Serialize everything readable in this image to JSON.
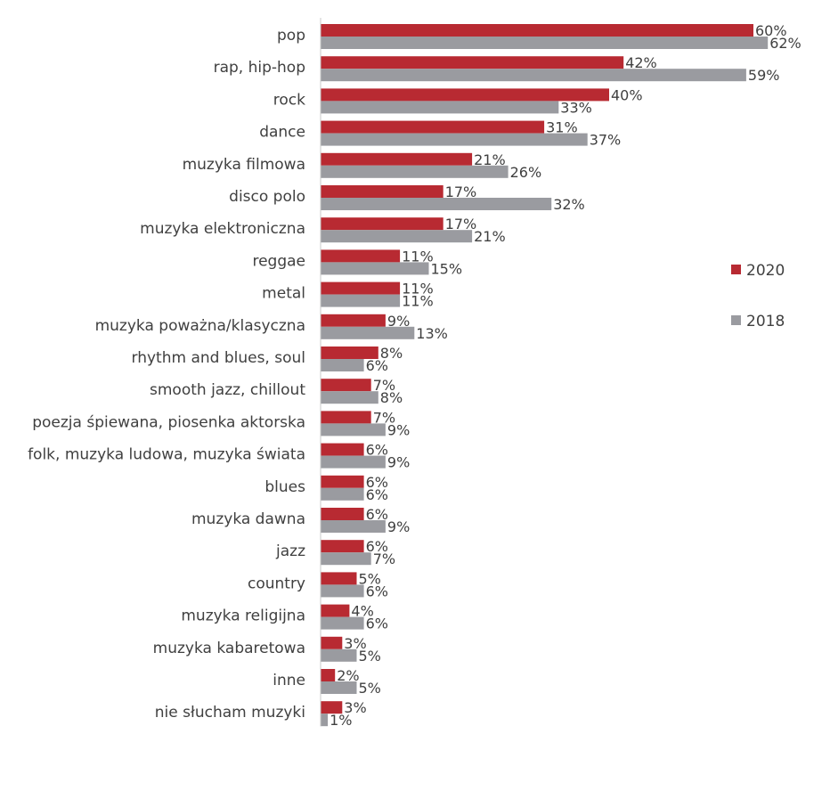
{
  "chart_data": {
    "type": "bar",
    "orientation": "horizontal",
    "categories": [
      "pop",
      "rap, hip-hop",
      "rock",
      "dance",
      "muzyka filmowa",
      "disco polo",
      "muzyka elektroniczna",
      "reggae",
      "metal",
      "muzyka poważna/klasyczna",
      "rhythm and blues, soul",
      "smooth jazz, chillout",
      "poezja śpiewana, piosenka aktorska",
      "folk, muzyka ludowa, muzyka świata",
      "blues",
      "muzyka dawna",
      "jazz",
      "country",
      "muzyka religijna",
      "muzyka kabaretowa",
      "inne",
      "nie słucham muzyki"
    ],
    "series": [
      {
        "name": "2020",
        "color": "#b82a32",
        "values": [
          60,
          42,
          40,
          31,
          21,
          17,
          17,
          11,
          11,
          9,
          8,
          7,
          7,
          6,
          6,
          6,
          6,
          5,
          4,
          3,
          2,
          3
        ]
      },
      {
        "name": "2018",
        "color": "#9a9ba0",
        "values": [
          62,
          59,
          33,
          37,
          26,
          32,
          21,
          15,
          11,
          13,
          6,
          8,
          9,
          9,
          6,
          9,
          7,
          6,
          6,
          5,
          5,
          1
        ]
      }
    ],
    "value_suffix": "%",
    "xlim": [
      0,
      70
    ],
    "grid": false,
    "legend_position": "right",
    "axis_color": "#c8c8c8",
    "label_color": "#404040"
  }
}
